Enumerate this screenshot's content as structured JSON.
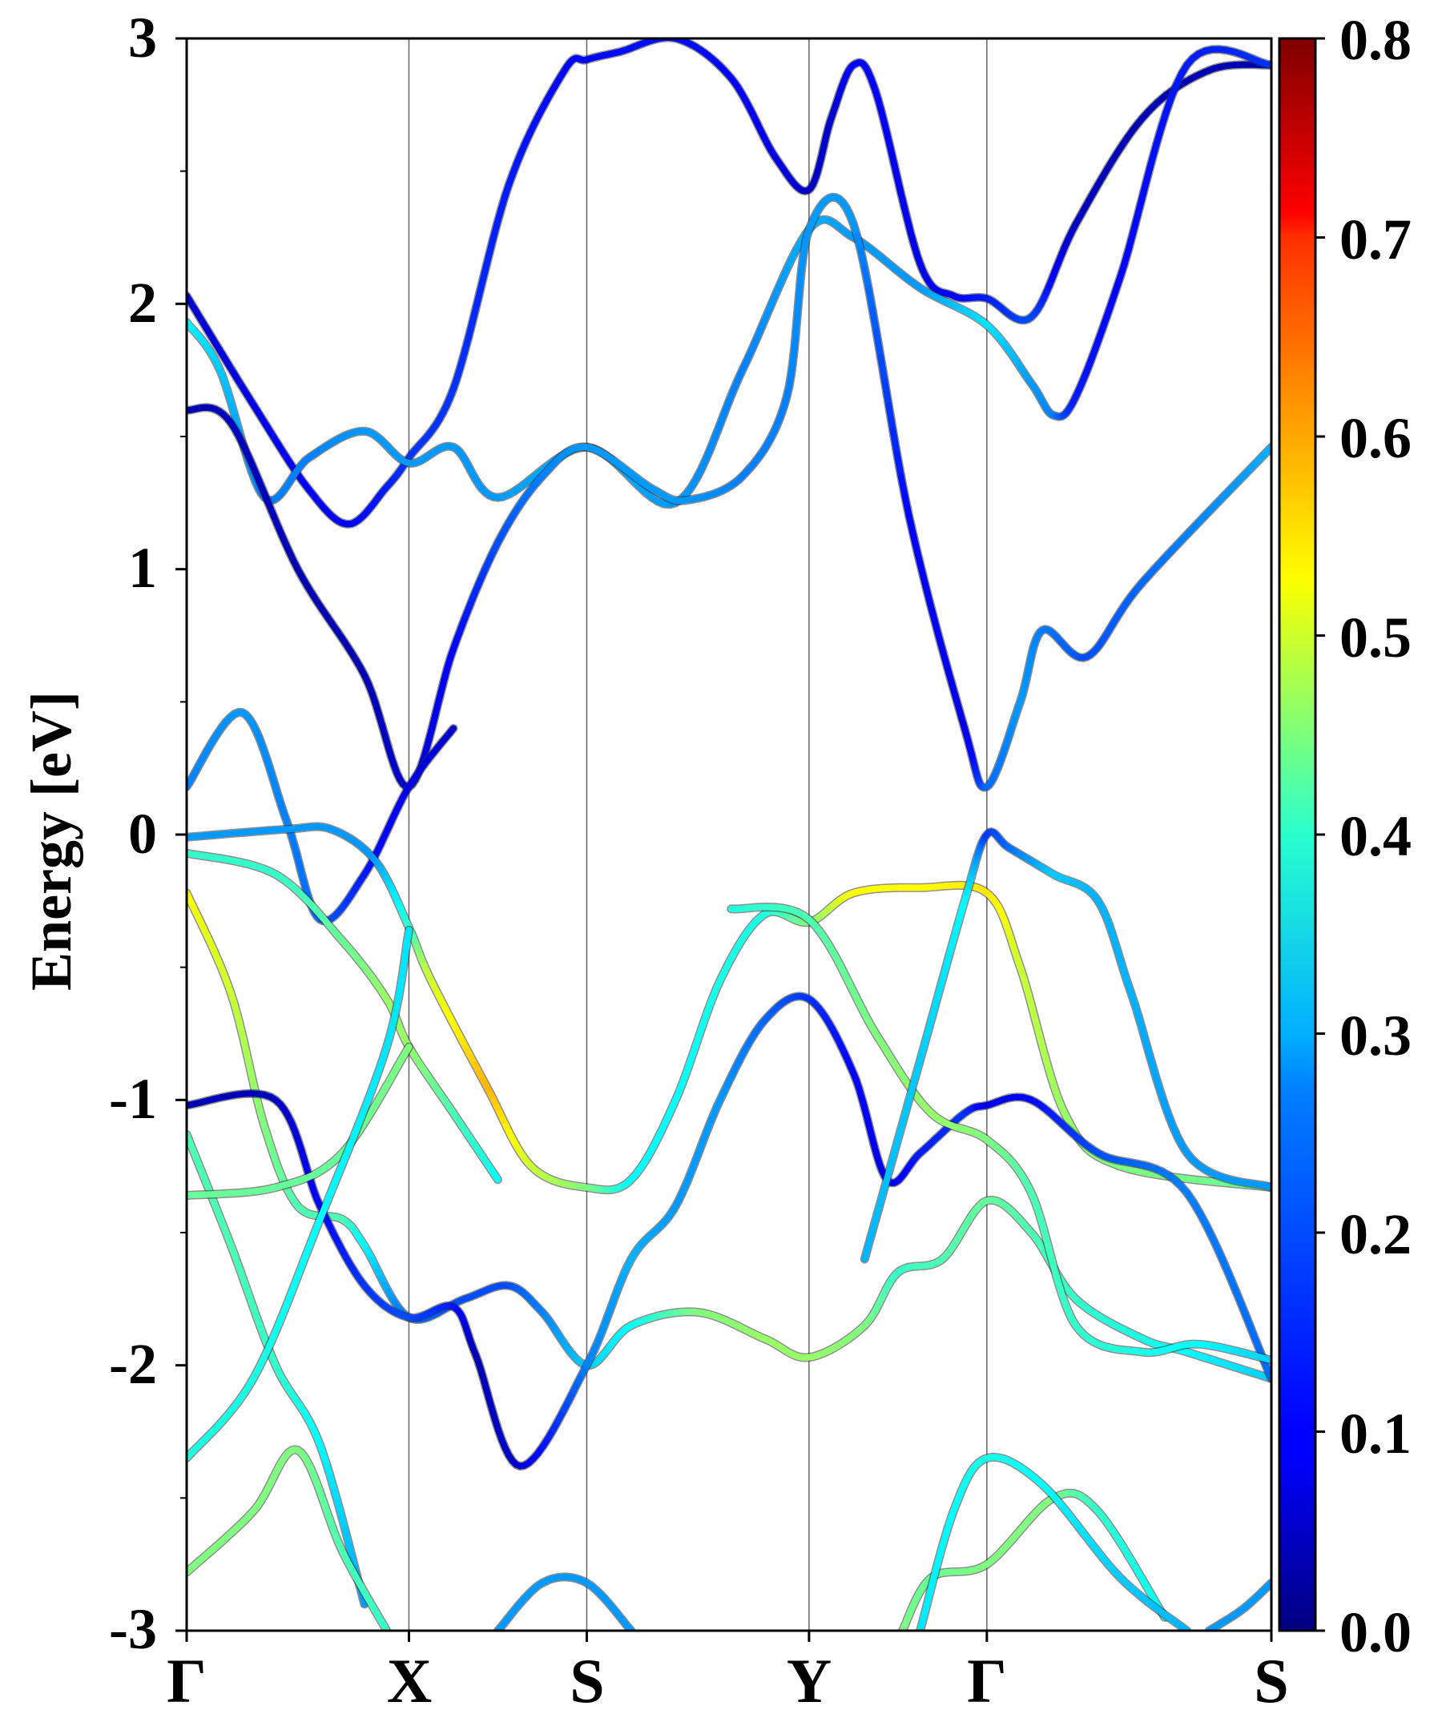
{
  "chart_data": {
    "type": "line",
    "title": "",
    "xlabel": "",
    "ylabel": "Energy [eV]",
    "ylim": [
      -3,
      3
    ],
    "yticks": [
      -3,
      -2,
      -1,
      0,
      1,
      2,
      3
    ],
    "ytick_labels": [
      "-3",
      "-2",
      "-1",
      "0",
      "1",
      "2",
      "3"
    ],
    "k_path": [
      {
        "label": "Γ",
        "x": 0.0
      },
      {
        "label": "X",
        "x": 1.0
      },
      {
        "label": "S",
        "x": 1.8
      },
      {
        "label": "Y",
        "x": 2.8
      },
      {
        "label": "Γ",
        "x": 3.6
      },
      {
        "label": "S",
        "x": 4.88
      }
    ],
    "grid": false,
    "colorbar": {
      "colormap": "jet",
      "range": [
        0.0,
        0.8
      ],
      "ticks": [
        0.0,
        0.1,
        0.2,
        0.3,
        0.4,
        0.5,
        0.6,
        0.7,
        0.8
      ],
      "tick_labels": [
        "0.0",
        "0.1",
        "0.2",
        "0.3",
        "0.4",
        "0.5",
        "0.6",
        "0.7",
        "0.8"
      ]
    },
    "series": [
      {
        "name": "band-1",
        "points": [
          [
            0.0,
            2.03
          ],
          [
            0.3,
            1.62
          ],
          [
            0.55,
            1.3
          ],
          [
            0.73,
            1.17
          ],
          [
            0.9,
            1.31
          ],
          [
            1.0,
            1.42
          ],
          [
            1.2,
            1.68
          ],
          [
            1.45,
            2.45
          ],
          [
            1.7,
            2.88
          ],
          [
            1.8,
            2.92
          ],
          [
            1.95,
            2.95
          ],
          [
            2.2,
            3.0
          ],
          [
            2.45,
            2.85
          ],
          [
            2.65,
            2.55
          ],
          [
            2.8,
            2.43
          ],
          [
            2.9,
            2.7
          ],
          [
            3.0,
            2.9
          ],
          [
            3.1,
            2.8
          ],
          [
            3.3,
            2.15
          ],
          [
            3.45,
            2.03
          ],
          [
            3.6,
            2.02
          ],
          [
            3.8,
            1.95
          ],
          [
            4.0,
            2.3
          ],
          [
            4.3,
            2.7
          ],
          [
            4.6,
            2.88
          ],
          [
            4.88,
            2.9
          ]
        ],
        "weight": [
          0.06,
          0.08,
          0.1,
          0.1,
          0.12,
          0.14,
          0.14,
          0.12,
          0.1,
          0.1,
          0.11,
          0.11,
          0.1,
          0.08,
          0.05,
          0.06,
          0.1,
          0.1,
          0.08,
          0.1,
          0.12,
          0.16,
          0.05,
          0.04,
          0.04,
          0.04
        ]
      },
      {
        "name": "band-2",
        "points": [
          [
            0.0,
            1.93
          ],
          [
            0.15,
            1.75
          ],
          [
            0.35,
            1.27
          ],
          [
            0.55,
            1.42
          ],
          [
            0.8,
            1.52
          ],
          [
            1.0,
            1.4
          ],
          [
            1.2,
            1.46
          ],
          [
            1.4,
            1.27
          ],
          [
            1.8,
            1.46
          ],
          [
            2.2,
            1.25
          ],
          [
            2.5,
            1.75
          ],
          [
            2.8,
            2.28
          ],
          [
            3.0,
            2.25
          ],
          [
            3.3,
            2.06
          ],
          [
            3.6,
            1.92
          ],
          [
            3.8,
            1.7
          ],
          [
            3.9,
            1.58
          ],
          [
            4.0,
            1.65
          ],
          [
            4.2,
            2.1
          ],
          [
            4.5,
            2.9
          ],
          [
            4.88,
            2.9
          ]
        ],
        "weight": [
          0.3,
          0.26,
          0.2,
          0.2,
          0.22,
          0.22,
          0.22,
          0.22,
          0.24,
          0.22,
          0.2,
          0.24,
          0.22,
          0.22,
          0.28,
          0.22,
          0.2,
          0.12,
          0.1,
          0.12,
          0.14
        ]
      },
      {
        "name": "band-3",
        "points": [
          [
            0.0,
            1.6
          ],
          [
            0.2,
            1.55
          ],
          [
            0.5,
            1.0
          ],
          [
            0.8,
            0.6
          ],
          [
            1.0,
            0.18
          ],
          [
            1.2,
            0.7
          ],
          [
            1.4,
            1.1
          ],
          [
            1.6,
            1.35
          ],
          [
            1.8,
            1.46
          ],
          [
            2.1,
            1.3
          ],
          [
            2.25,
            1.26
          ],
          [
            2.5,
            1.35
          ],
          [
            2.7,
            1.65
          ],
          [
            2.8,
            2.28
          ],
          [
            3.0,
            2.3
          ],
          [
            3.25,
            1.2
          ],
          [
            3.5,
            0.4
          ],
          [
            3.6,
            0.18
          ],
          [
            3.75,
            0.5
          ],
          [
            3.85,
            0.77
          ],
          [
            4.05,
            0.67
          ],
          [
            4.3,
            0.95
          ],
          [
            4.88,
            1.46
          ]
        ],
        "weight": [
          0.04,
          0.05,
          0.04,
          0.04,
          0.06,
          0.1,
          0.16,
          0.2,
          0.22,
          0.22,
          0.22,
          0.2,
          0.2,
          0.22,
          0.22,
          0.1,
          0.08,
          0.18,
          0.22,
          0.2,
          0.16,
          0.18,
          0.24
        ]
      },
      {
        "name": "band-4",
        "points": [
          [
            0.0,
            0.18
          ],
          [
            0.25,
            0.46
          ],
          [
            0.45,
            0.05
          ],
          [
            0.6,
            -0.32
          ],
          [
            0.8,
            -0.15
          ],
          [
            1.0,
            0.18
          ],
          [
            1.2,
            0.4
          ]
        ],
        "weight": [
          0.2,
          0.22,
          0.2,
          0.18,
          0.12,
          0.08,
          0.06
        ]
      },
      {
        "name": "band-5",
        "points": [
          [
            0.0,
            -0.01
          ],
          [
            0.45,
            0.02
          ],
          [
            0.65,
            0.02
          ],
          [
            0.85,
            -0.1
          ],
          [
            1.0,
            -0.35
          ],
          [
            1.1,
            -0.55
          ],
          [
            1.35,
            -0.95
          ],
          [
            1.55,
            -1.25
          ],
          [
            1.8,
            -1.33
          ],
          [
            2.0,
            -1.3
          ],
          [
            2.2,
            -1.0
          ],
          [
            2.4,
            -0.55
          ],
          [
            2.6,
            -0.3
          ],
          [
            2.8,
            -0.33
          ],
          [
            3.0,
            -0.22
          ],
          [
            3.3,
            -0.2
          ],
          [
            3.6,
            -0.22
          ],
          [
            3.75,
            -0.5
          ],
          [
            3.95,
            -1.05
          ],
          [
            4.2,
            -1.25
          ],
          [
            4.88,
            -1.33
          ]
        ],
        "weight": [
          0.22,
          0.22,
          0.22,
          0.22,
          0.34,
          0.46,
          0.56,
          0.46,
          0.4,
          0.3,
          0.3,
          0.32,
          0.32,
          0.4,
          0.5,
          0.5,
          0.52,
          0.46,
          0.42,
          0.4,
          0.38
        ]
      },
      {
        "name": "band-6",
        "points": [
          [
            0.0,
            -0.07
          ],
          [
            0.4,
            -0.15
          ],
          [
            0.7,
            -0.4
          ],
          [
            0.9,
            -0.62
          ],
          [
            1.0,
            -0.8
          ],
          [
            1.2,
            -1.05
          ],
          [
            1.4,
            -1.3
          ]
        ],
        "weight": [
          0.34,
          0.34,
          0.38,
          0.42,
          0.42,
          0.36,
          0.3
        ]
      },
      {
        "name": "band-7",
        "points": [
          [
            0.0,
            -0.22
          ],
          [
            0.2,
            -0.6
          ],
          [
            0.35,
            -1.1
          ],
          [
            0.5,
            -1.4
          ],
          [
            0.7,
            -1.45
          ],
          [
            0.8,
            -1.55
          ],
          [
            1.0,
            -1.82
          ],
          [
            1.25,
            -1.75
          ],
          [
            1.45,
            -1.7
          ],
          [
            1.6,
            -1.8
          ],
          [
            1.8,
            -2.0
          ],
          [
            2.0,
            -1.85
          ],
          [
            2.3,
            -1.8
          ],
          [
            2.6,
            -1.9
          ],
          [
            2.8,
            -1.97
          ],
          [
            3.05,
            -1.85
          ],
          [
            3.2,
            -1.65
          ],
          [
            3.4,
            -1.6
          ],
          [
            3.6,
            -1.38
          ],
          [
            3.8,
            -1.5
          ],
          [
            4.0,
            -1.75
          ],
          [
            4.3,
            -1.9
          ],
          [
            4.5,
            -1.95
          ],
          [
            4.88,
            -2.05
          ]
        ],
        "weight": [
          0.5,
          0.46,
          0.4,
          0.36,
          0.36,
          0.3,
          0.18,
          0.16,
          0.16,
          0.2,
          0.26,
          0.3,
          0.4,
          0.42,
          0.42,
          0.4,
          0.34,
          0.36,
          0.38,
          0.36,
          0.34,
          0.32,
          0.3,
          0.26
        ]
      },
      {
        "name": "band-8",
        "points": [
          [
            0.0,
            -1.02
          ],
          [
            0.4,
            -1.0
          ],
          [
            0.6,
            -1.4
          ],
          [
            0.8,
            -1.7
          ],
          [
            1.0,
            -1.82
          ],
          [
            1.2,
            -1.78
          ],
          [
            1.3,
            -1.96
          ],
          [
            1.5,
            -2.38
          ],
          [
            1.8,
            -2.0
          ],
          [
            2.0,
            -1.6
          ],
          [
            2.2,
            -1.4
          ],
          [
            2.4,
            -1.0
          ],
          [
            2.6,
            -0.7
          ],
          [
            2.8,
            -0.62
          ],
          [
            3.0,
            -0.9
          ],
          [
            3.15,
            -1.3
          ],
          [
            3.3,
            -1.2
          ],
          [
            3.5,
            -1.05
          ],
          [
            3.6,
            -1.02
          ],
          [
            3.8,
            -1.0
          ],
          [
            4.1,
            -1.2
          ],
          [
            4.5,
            -1.35
          ],
          [
            4.88,
            -2.05
          ]
        ],
        "weight": [
          0.04,
          0.05,
          0.1,
          0.14,
          0.16,
          0.12,
          0.04,
          0.06,
          0.2,
          0.24,
          0.22,
          0.22,
          0.18,
          0.14,
          0.1,
          0.08,
          0.12,
          0.14,
          0.08,
          0.1,
          0.16,
          0.2,
          0.18
        ]
      },
      {
        "name": "band-9",
        "points": [
          [
            0.0,
            -1.13
          ],
          [
            0.2,
            -1.55
          ],
          [
            0.4,
            -2.0
          ],
          [
            0.6,
            -2.3
          ],
          [
            0.8,
            -2.9
          ]
        ],
        "weight": [
          0.36,
          0.36,
          0.34,
          0.3,
          0.22
        ]
      },
      {
        "name": "band-10",
        "points": [
          [
            0.0,
            -1.36
          ],
          [
            0.4,
            -1.33
          ],
          [
            0.7,
            -1.2
          ],
          [
            1.0,
            -0.8
          ]
        ],
        "weight": [
          0.38,
          0.38,
          0.38,
          0.4
        ]
      },
      {
        "name": "band-11",
        "points": [
          [
            0.0,
            -2.35
          ],
          [
            0.3,
            -2.05
          ],
          [
            0.6,
            -1.45
          ],
          [
            0.9,
            -0.8
          ],
          [
            1.0,
            -0.36
          ]
        ],
        "weight": [
          0.32,
          0.32,
          0.3,
          0.28,
          0.28
        ]
      },
      {
        "name": "band-12",
        "points": [
          [
            0.0,
            -2.78
          ],
          [
            0.3,
            -2.55
          ],
          [
            0.5,
            -2.32
          ],
          [
            0.7,
            -2.7
          ],
          [
            0.9,
            -3.0
          ]
        ],
        "weight": [
          0.4,
          0.4,
          0.4,
          0.36,
          0.34
        ]
      },
      {
        "name": "band-13",
        "points": [
          [
            1.4,
            -3.0
          ],
          [
            1.6,
            -2.82
          ],
          [
            1.8,
            -2.82
          ],
          [
            2.0,
            -3.0
          ]
        ],
        "weight": [
          0.22,
          0.22,
          0.22,
          0.22
        ]
      },
      {
        "name": "band-14",
        "points": [
          [
            2.45,
            -0.28
          ],
          [
            2.8,
            -0.32
          ],
          [
            3.1,
            -0.75
          ],
          [
            3.35,
            -1.05
          ],
          [
            3.6,
            -1.15
          ],
          [
            3.8,
            -1.35
          ],
          [
            4.0,
            -1.85
          ],
          [
            4.3,
            -1.95
          ],
          [
            4.55,
            -1.92
          ],
          [
            4.88,
            -1.98
          ]
        ],
        "weight": [
          0.32,
          0.36,
          0.4,
          0.42,
          0.4,
          0.36,
          0.34,
          0.32,
          0.3,
          0.26
        ]
      },
      {
        "name": "band-15",
        "points": [
          [
            3.05,
            -1.6
          ],
          [
            3.3,
            -0.85
          ],
          [
            3.5,
            -0.25
          ],
          [
            3.6,
            0.0
          ],
          [
            3.7,
            -0.05
          ],
          [
            3.9,
            -0.15
          ],
          [
            4.1,
            -0.25
          ],
          [
            4.25,
            -0.6
          ],
          [
            4.5,
            -1.2
          ],
          [
            4.88,
            -1.33
          ]
        ],
        "weight": [
          0.24,
          0.26,
          0.3,
          0.14,
          0.18,
          0.26,
          0.24,
          0.24,
          0.22,
          0.22
        ]
      },
      {
        "name": "band-16",
        "points": [
          [
            3.22,
            -3.0
          ],
          [
            3.35,
            -2.8
          ],
          [
            3.6,
            -2.75
          ],
          [
            3.9,
            -2.5
          ],
          [
            4.1,
            -2.55
          ],
          [
            4.4,
            -2.95
          ]
        ],
        "weight": [
          0.4,
          0.38,
          0.4,
          0.4,
          0.34,
          0.3
        ]
      },
      {
        "name": "band-17",
        "points": [
          [
            3.3,
            -3.0
          ],
          [
            3.45,
            -2.55
          ],
          [
            3.6,
            -2.35
          ],
          [
            3.85,
            -2.45
          ],
          [
            4.2,
            -2.8
          ],
          [
            4.5,
            -3.0
          ]
        ],
        "weight": [
          0.28,
          0.3,
          0.32,
          0.3,
          0.26,
          0.24
        ]
      },
      {
        "name": "band-18",
        "points": [
          [
            4.6,
            -3.0
          ],
          [
            4.75,
            -2.92
          ],
          [
            4.88,
            -2.82
          ]
        ],
        "weight": [
          0.22,
          0.22,
          0.22
        ]
      }
    ]
  }
}
